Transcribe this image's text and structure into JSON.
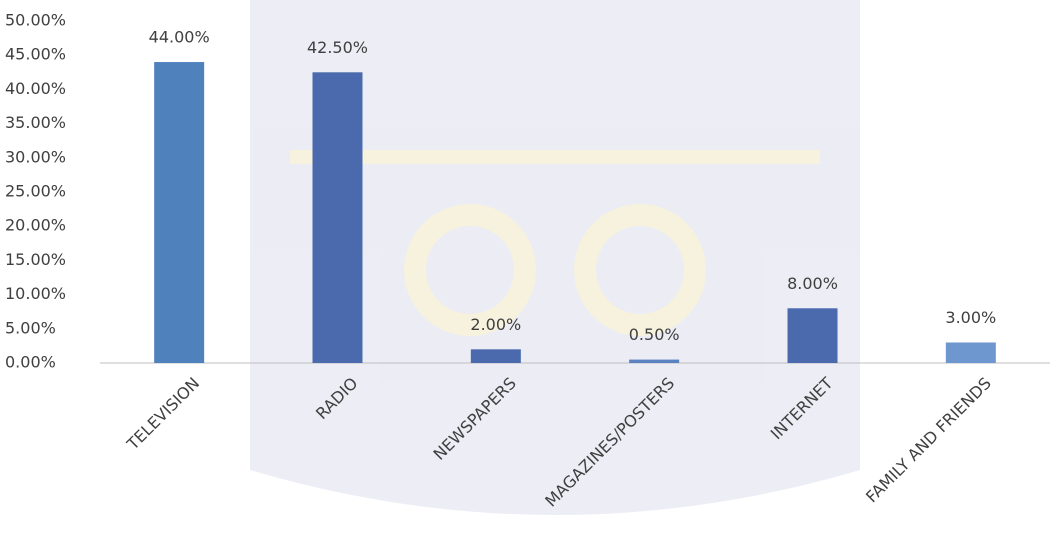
{
  "chart_data": {
    "type": "bar",
    "categories": [
      "TELEVISION",
      "RADIO",
      "NEWSPAPERS",
      "MAGAZINES/POSTERS",
      "INTERNET",
      "FAMILY AND FRIENDS"
    ],
    "values": [
      44,
      42.5,
      2,
      0.5,
      8,
      3
    ],
    "value_labels": [
      "44.00%",
      "42.50%",
      "2.00%",
      "0.50%",
      "8.00%",
      "3.00%"
    ],
    "colors": [
      "#4f81bd",
      "#4a6aad",
      "#4a6aad",
      "#5b82c0",
      "#4a6aad",
      "#6f97cf"
    ],
    "ylim": [
      0,
      50
    ],
    "yticks": [
      {
        "value": 0,
        "label": "0.00%"
      },
      {
        "value": 5,
        "label": "5.00%"
      },
      {
        "value": 10,
        "label": "10.00%"
      },
      {
        "value": 15,
        "label": "15.00%"
      },
      {
        "value": 20,
        "label": "20.00%"
      },
      {
        "value": 25,
        "label": "25.00%"
      },
      {
        "value": 30,
        "label": "30.00%"
      },
      {
        "value": 35,
        "label": "35.00%"
      },
      {
        "value": 40,
        "label": "40.00%"
      },
      {
        "value": 45,
        "label": "45.00%"
      },
      {
        "value": 50,
        "label": "50.00%"
      }
    ],
    "grid": false
  }
}
